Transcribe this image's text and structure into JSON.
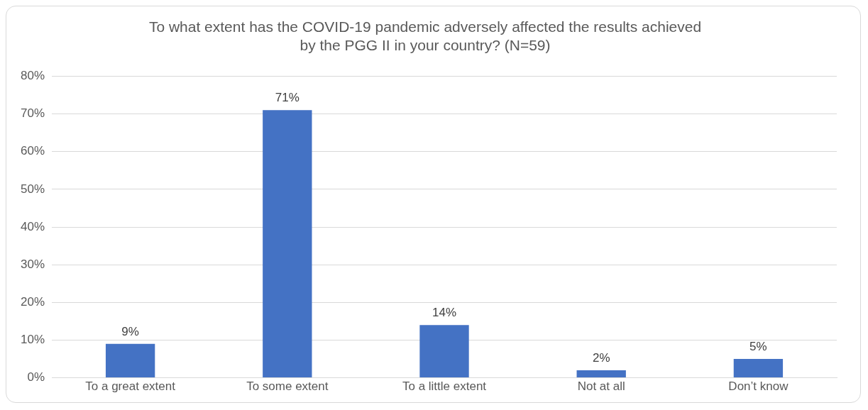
{
  "chart_data": {
    "type": "bar",
    "title": "To what extent has the COVID-19 pandemic adversely affected the results achieved by the PGG II in your country? (N=59)",
    "categories": [
      "To a great extent",
      "To some extent",
      "To a little extent",
      "Not at all",
      "Don’t know"
    ],
    "values": [
      9,
      71,
      14,
      2,
      5
    ],
    "value_labels": [
      "9%",
      "71%",
      "14%",
      "2%",
      "5%"
    ],
    "color": "#4472c4",
    "ylim": [
      0,
      80
    ],
    "yticks": [
      {
        "value": 0,
        "label": "0%"
      },
      {
        "value": 10,
        "label": "10%"
      },
      {
        "value": 20,
        "label": "20%"
      },
      {
        "value": 30,
        "label": "30%"
      },
      {
        "value": 40,
        "label": "40%"
      },
      {
        "value": 50,
        "label": "50%"
      },
      {
        "value": 60,
        "label": "60%"
      },
      {
        "value": 70,
        "label": "70%"
      },
      {
        "value": 80,
        "label": "80%"
      }
    ],
    "grid": "y",
    "legend": false
  }
}
